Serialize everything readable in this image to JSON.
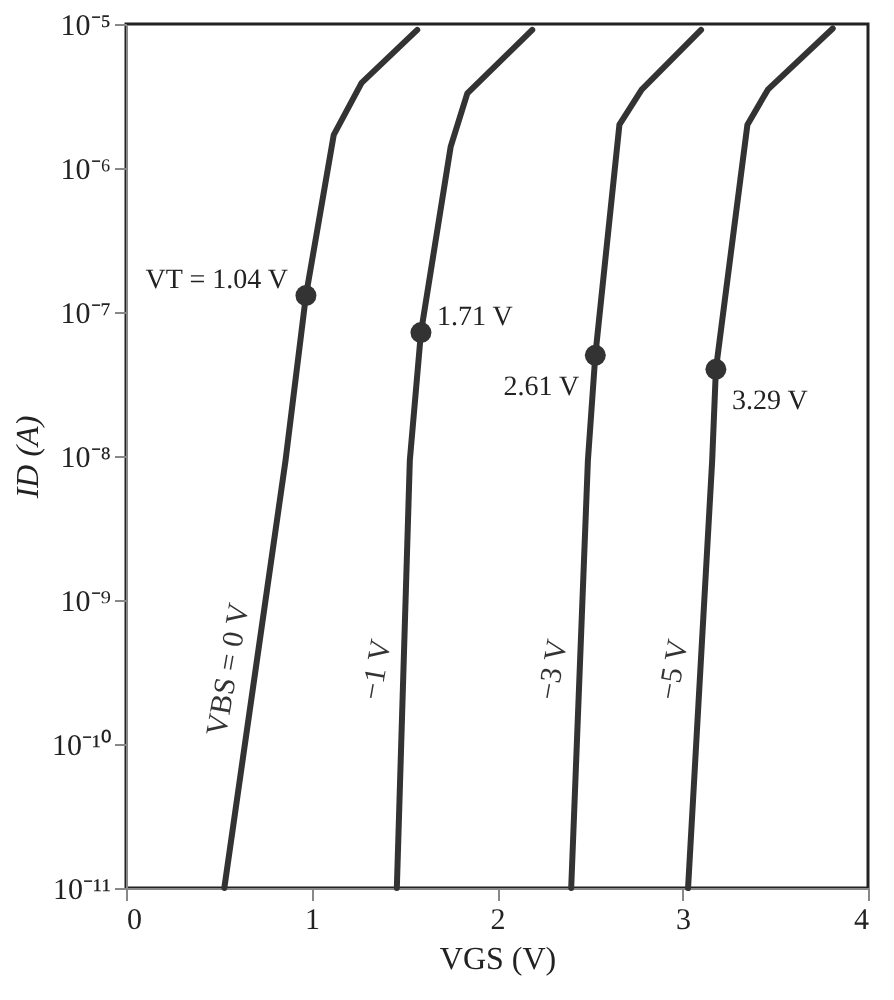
{
  "chart_data": {
    "type": "line",
    "xlabel": "VGS (V)",
    "ylabel": "ID (A)",
    "xlim": [
      0,
      4
    ],
    "xticks": [
      0,
      1,
      2,
      3,
      4
    ],
    "ylim": [
      1e-11,
      1e-05
    ],
    "log": "y",
    "yticks": [
      {
        "value": 1e-11,
        "label": "10⁻¹¹"
      },
      {
        "value": 1e-10,
        "label": "10⁻¹⁰"
      },
      {
        "value": 1e-09,
        "label": "10⁻⁹"
      },
      {
        "value": 1e-08,
        "label": "10⁻⁸"
      },
      {
        "value": 1e-07,
        "label": "10⁻⁷"
      },
      {
        "value": 1e-06,
        "label": "10⁻⁶"
      },
      {
        "value": 1e-05,
        "label": "10⁻⁵"
      }
    ],
    "grid": false,
    "marker": "none",
    "line_style": "solid",
    "series": [
      {
        "name": "VBS = 0 V",
        "color": "#333333",
        "x": [
          0.53,
          0.86,
          0.97,
          1.12,
          1.27,
          1.57
        ],
        "values": [
          1e-11,
          9.3e-09,
          1.3e-07,
          1.7e-06,
          3.9e-06,
          9.1e-06
        ]
      },
      {
        "name": "−1 V",
        "color": "#333333",
        "x": [
          1.46,
          1.53,
          1.59,
          1.75,
          1.84,
          2.19
        ],
        "values": [
          1e-11,
          9.3e-09,
          7.2e-08,
          1.4e-06,
          3.3e-06,
          9.1e-06
        ]
      },
      {
        "name": "−3 V",
        "color": "#333333",
        "x": [
          2.4,
          2.49,
          2.53,
          2.66,
          2.78,
          3.1
        ],
        "values": [
          1e-11,
          9.3e-09,
          5e-08,
          2e-06,
          3.5e-06,
          9.1e-06
        ]
      },
      {
        "name": "−5 V",
        "color": "#333333",
        "x": [
          3.03,
          3.16,
          3.18,
          3.35,
          3.46,
          3.81
        ],
        "values": [
          1e-11,
          9.3e-09,
          4e-08,
          2e-06,
          3.5e-06,
          9.3e-06
        ]
      },
      {
        "type": "scatter",
        "marker": "circle",
        "color": "#333333",
        "x": [
          0.97,
          1.59,
          2.53,
          3.18
        ],
        "values": [
          1.3e-07,
          7.2e-08,
          5e-08,
          4e-08
        ]
      }
    ],
    "annotations": [
      {
        "text": "VT = 1.04 V",
        "x": 0.97,
        "y": 1.3e-07
      },
      {
        "text": "1.71 V",
        "x": 1.59,
        "y": 7.2e-08
      },
      {
        "text": "2.61 V",
        "x": 2.53,
        "y": 5e-08
      },
      {
        "text": "3.29 V",
        "x": 3.18,
        "y": 4e-08
      }
    ]
  }
}
